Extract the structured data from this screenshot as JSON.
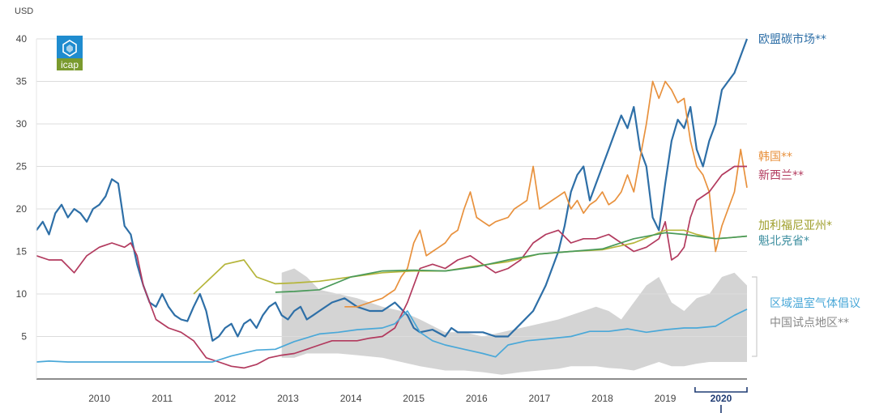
{
  "chart_data": {
    "type": "line",
    "y_unit": "USD",
    "ylim": [
      0,
      40
    ],
    "y_ticks": [
      5,
      10,
      15,
      20,
      25,
      30,
      35,
      40
    ],
    "xlim": [
      2009.5,
      2020.8
    ],
    "x_ticks": [
      2010,
      2011,
      2012,
      2013,
      2014,
      2015,
      2016,
      2017,
      2018,
      2019
    ],
    "highlight_year": {
      "label": "2020",
      "range": [
        2020.0,
        2020.8
      ]
    },
    "grid": true,
    "logo": {
      "text": "icap"
    },
    "series": [
      {
        "name": "欧盟碳市场**",
        "color": "#2e6fa7",
        "x": [
          2009.5,
          2009.6,
          2009.7,
          2009.8,
          2009.9,
          2010.0,
          2010.1,
          2010.2,
          2010.3,
          2010.4,
          2010.5,
          2010.6,
          2010.7,
          2010.8,
          2010.9,
          2011.0,
          2011.1,
          2011.2,
          2011.3,
          2011.4,
          2011.5,
          2011.6,
          2011.7,
          2011.8,
          2011.9,
          2012.0,
          2012.1,
          2012.2,
          2012.3,
          2012.4,
          2012.5,
          2012.6,
          2012.7,
          2012.8,
          2012.9,
          2013.0,
          2013.1,
          2013.2,
          2013.3,
          2013.4,
          2013.5,
          2013.6,
          2013.7,
          2013.8,
          2013.9,
          2014.0,
          2014.2,
          2014.4,
          2014.6,
          2014.8,
          2015.0,
          2015.2,
          2015.4,
          2015.5,
          2015.6,
          2015.8,
          2016.0,
          2016.1,
          2016.2,
          2016.4,
          2016.6,
          2016.8,
          2017.0,
          2017.2,
          2017.4,
          2017.6,
          2017.8,
          2017.9,
          2018.0,
          2018.1,
          2018.2,
          2018.3,
          2018.4,
          2018.5,
          2018.6,
          2018.7,
          2018.8,
          2018.9,
          2019.0,
          2019.1,
          2019.2,
          2019.3,
          2019.4,
          2019.5,
          2019.6,
          2019.7,
          2019.8,
          2019.9,
          2020.0,
          2020.1,
          2020.2,
          2020.3,
          2020.4,
          2020.5,
          2020.6,
          2020.7,
          2020.8
        ],
        "y": [
          17.5,
          18.5,
          17.0,
          19.5,
          20.5,
          19.0,
          20.0,
          19.5,
          18.5,
          20.0,
          20.5,
          21.5,
          23.5,
          23.0,
          18.0,
          17.0,
          13.5,
          11.0,
          9.0,
          8.5,
          10.0,
          8.5,
          7.5,
          7.0,
          6.8,
          8.5,
          10.0,
          8.0,
          4.5,
          5.0,
          6.0,
          6.5,
          5.0,
          6.5,
          7.0,
          6.0,
          7.5,
          8.5,
          9.0,
          7.5,
          7.0,
          8.0,
          8.5,
          7.0,
          7.5,
          8.0,
          9.0,
          9.5,
          8.5,
          8.0,
          8.0,
          9.0,
          7.5,
          6.0,
          5.5,
          5.8,
          5.0,
          6.0,
          5.5,
          5.5,
          5.5,
          5.0,
          5.0,
          6.5,
          8.0,
          11.0,
          15.0,
          18.0,
          22.0,
          24.0,
          25.0,
          21.0,
          23.0,
          25.0,
          27.0,
          29.0,
          31.0,
          29.5,
          32.0,
          27.0,
          25.0,
          19.0,
          17.5,
          23.0,
          28.0,
          30.5,
          29.5,
          32.0,
          27.0,
          25.0,
          28.0,
          30.0,
          34.0,
          35.0,
          36.0,
          38.0,
          40.0
        ]
      },
      {
        "name": "韩国**",
        "color": "#e8913d",
        "x": [
          2014.4,
          2014.6,
          2014.8,
          2015.0,
          2015.1,
          2015.2,
          2015.3,
          2015.4,
          2015.5,
          2015.6,
          2015.7,
          2015.8,
          2015.9,
          2016.0,
          2016.1,
          2016.2,
          2016.3,
          2016.4,
          2016.5,
          2016.6,
          2016.7,
          2016.8,
          2017.0,
          2017.1,
          2017.2,
          2017.3,
          2017.4,
          2017.5,
          2017.6,
          2017.7,
          2017.8,
          2017.9,
          2018.0,
          2018.1,
          2018.2,
          2018.3,
          2018.4,
          2018.5,
          2018.6,
          2018.7,
          2018.8,
          2018.9,
          2019.0,
          2019.1,
          2019.2,
          2019.3,
          2019.4,
          2019.5,
          2019.6,
          2019.7,
          2019.8,
          2019.9,
          2020.0,
          2020.1,
          2020.2,
          2020.3,
          2020.4,
          2020.5,
          2020.6,
          2020.7,
          2020.8
        ],
        "y": [
          8.5,
          8.5,
          9.0,
          9.5,
          10.0,
          10.5,
          12.0,
          13.0,
          16.0,
          17.5,
          14.5,
          15.0,
          15.5,
          16.0,
          17.0,
          17.5,
          20.0,
          22.0,
          19.0,
          18.5,
          18.0,
          18.5,
          19.0,
          20.0,
          20.5,
          21.0,
          25.0,
          20.0,
          20.5,
          21.0,
          21.5,
          22.0,
          20.0,
          21.0,
          19.5,
          20.5,
          21.0,
          22.0,
          20.5,
          21.0,
          22.0,
          24.0,
          22.0,
          26.0,
          30.0,
          35.0,
          33.0,
          35.0,
          34.0,
          32.5,
          33.0,
          28.0,
          25.0,
          24.0,
          22.0,
          15.0,
          18.0,
          20.0,
          22.0,
          27.0,
          22.5
        ]
      },
      {
        "name": "新西兰**",
        "color": "#b23a5e",
        "x": [
          2009.5,
          2009.7,
          2009.9,
          2010.1,
          2010.3,
          2010.5,
          2010.7,
          2010.9,
          2011.0,
          2011.1,
          2011.2,
          2011.3,
          2011.4,
          2011.6,
          2011.8,
          2012.0,
          2012.2,
          2012.4,
          2012.6,
          2012.8,
          2013.0,
          2013.2,
          2013.4,
          2013.6,
          2013.8,
          2014.0,
          2014.2,
          2014.4,
          2014.6,
          2014.8,
          2015.0,
          2015.2,
          2015.4,
          2015.6,
          2015.8,
          2016.0,
          2016.2,
          2016.4,
          2016.6,
          2016.8,
          2017.0,
          2017.2,
          2017.4,
          2017.6,
          2017.8,
          2018.0,
          2018.2,
          2018.4,
          2018.6,
          2018.8,
          2019.0,
          2019.2,
          2019.4,
          2019.5,
          2019.6,
          2019.7,
          2019.8,
          2019.9,
          2020.0,
          2020.2,
          2020.4,
          2020.6,
          2020.8
        ],
        "y": [
          14.5,
          14.0,
          14.0,
          12.5,
          14.5,
          15.5,
          16.0,
          15.5,
          16.0,
          14.5,
          11.0,
          9.0,
          7.0,
          6.0,
          5.5,
          4.5,
          2.5,
          2.0,
          1.5,
          1.3,
          1.7,
          2.5,
          2.8,
          3.0,
          3.5,
          4.0,
          4.5,
          4.5,
          4.5,
          4.8,
          5.0,
          6.0,
          9.0,
          13.0,
          13.5,
          13.0,
          14.0,
          14.5,
          13.5,
          12.5,
          13.0,
          14.0,
          16.0,
          17.0,
          17.5,
          16.0,
          16.5,
          16.5,
          17.0,
          16.0,
          15.0,
          15.5,
          16.5,
          18.5,
          14.0,
          14.5,
          15.5,
          19.0,
          21.0,
          22.0,
          24.0,
          25.0,
          25.0
        ]
      },
      {
        "name": "加利福尼亚州*",
        "color": "#b5b53a",
        "x": [
          2012.0,
          2012.5,
          2012.8,
          2013.0,
          2013.3,
          2013.6,
          2014.0,
          2014.5,
          2015.0,
          2015.5,
          2016.0,
          2016.5,
          2017.0,
          2017.5,
          2018.0,
          2018.5,
          2019.0,
          2019.5,
          2019.8,
          2020.0,
          2020.3,
          2020.5,
          2020.8
        ],
        "y": [
          10.0,
          13.5,
          14.0,
          12.0,
          11.2,
          11.3,
          11.5,
          12.0,
          12.5,
          12.7,
          12.7,
          13.3,
          13.8,
          14.7,
          15.0,
          15.2,
          16.0,
          17.5,
          17.5,
          17.0,
          16.5,
          16.6,
          16.8
        ]
      },
      {
        "name": "魁北克省*",
        "color": "#4a9a5a",
        "x": [
          2013.3,
          2013.6,
          2014.0,
          2014.5,
          2015.0,
          2015.5,
          2016.0,
          2016.5,
          2017.0,
          2017.5,
          2018.0,
          2018.5,
          2019.0,
          2019.5,
          2019.8,
          2020.0,
          2020.3,
          2020.5,
          2020.8
        ],
        "y": [
          10.2,
          10.3,
          10.5,
          12.0,
          12.7,
          12.8,
          12.7,
          13.2,
          14.0,
          14.7,
          15.0,
          15.3,
          16.5,
          17.2,
          17.0,
          16.8,
          16.5,
          16.6,
          16.8
        ]
      },
      {
        "name": "区域温室气体倡议",
        "color": "#4aa8d8",
        "x": [
          2009.5,
          2009.7,
          2010.0,
          2010.5,
          2011.0,
          2011.5,
          2012.0,
          2012.3,
          2012.6,
          2013.0,
          2013.3,
          2013.6,
          2014.0,
          2014.3,
          2014.6,
          2015.0,
          2015.2,
          2015.4,
          2015.6,
          2015.8,
          2016.0,
          2016.3,
          2016.6,
          2016.8,
          2017.0,
          2017.3,
          2017.6,
          2018.0,
          2018.3,
          2018.6,
          2018.9,
          2019.2,
          2019.5,
          2019.8,
          2020.0,
          2020.3,
          2020.6,
          2020.8
        ],
        "y": [
          2.0,
          2.1,
          2.0,
          2.0,
          2.0,
          2.0,
          2.0,
          2.0,
          2.7,
          3.4,
          3.5,
          4.4,
          5.3,
          5.5,
          5.8,
          6.0,
          6.5,
          8.0,
          5.5,
          4.5,
          4.0,
          3.5,
          3.0,
          2.6,
          4.0,
          4.5,
          4.7,
          5.0,
          5.6,
          5.6,
          5.9,
          5.5,
          5.8,
          6.0,
          6.0,
          6.2,
          7.5,
          8.2
        ]
      },
      {
        "name": "中国试点地区**",
        "color": "#cccccc",
        "type": "band",
        "x": [
          2013.4,
          2013.6,
          2013.8,
          2014.0,
          2014.3,
          2014.6,
          2015.0,
          2015.3,
          2015.6,
          2016.0,
          2016.3,
          2016.6,
          2016.9,
          2017.2,
          2017.5,
          2017.8,
          2018.0,
          2018.2,
          2018.4,
          2018.6,
          2018.8,
          2019.0,
          2019.2,
          2019.4,
          2019.6,
          2019.8,
          2020.0,
          2020.2,
          2020.4,
          2020.6,
          2020.8
        ],
        "upper": [
          12.5,
          13.0,
          12.0,
          10.5,
          10.0,
          9.5,
          8.5,
          8.0,
          7.0,
          5.5,
          5.5,
          5.0,
          5.5,
          6.0,
          6.5,
          7.0,
          7.5,
          8.0,
          8.5,
          8.0,
          7.0,
          9.0,
          11.0,
          12.0,
          9.0,
          8.0,
          9.5,
          10.0,
          12.0,
          12.5,
          11.0
        ],
        "lower": [
          2.5,
          2.5,
          3.0,
          3.0,
          3.0,
          2.8,
          2.5,
          2.0,
          1.5,
          1.0,
          1.0,
          0.8,
          0.5,
          0.8,
          1.0,
          1.2,
          1.5,
          1.5,
          1.5,
          1.3,
          1.2,
          1.0,
          1.5,
          2.0,
          1.5,
          1.5,
          1.8,
          2.0,
          2.0,
          2.0,
          2.0
        ]
      }
    ]
  }
}
